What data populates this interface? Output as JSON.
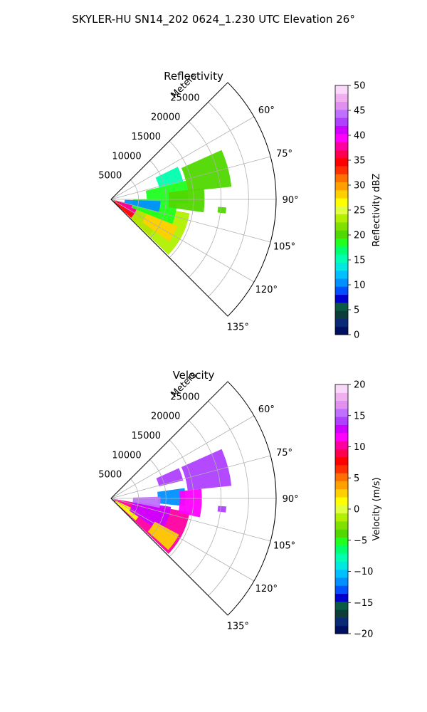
{
  "figure_title": "SKYLER-HU  SN14_202  0624_1.230 UTC Elevation 26°",
  "chart_data": [
    {
      "type": "heatmap",
      "projection": "polar-sector",
      "title": "Reflectivity",
      "radial_label": "Meters",
      "radial_ticks": [
        5000,
        10000,
        15000,
        20000,
        25000
      ],
      "radial_limit": [
        0,
        30000
      ],
      "angle_ticks": [
        60,
        75,
        90,
        105,
        120,
        135
      ],
      "angle_range_deg": [
        45,
        135
      ],
      "grid": true,
      "colorbar": {
        "label": "Reflectivity dBZ",
        "range": [
          0,
          50
        ],
        "ticks": [
          0,
          5,
          10,
          15,
          20,
          25,
          30,
          35,
          40,
          45,
          50
        ],
        "colors": [
          "#001060",
          "#0a2a78",
          "#0c3d3a",
          "#0a5a46",
          "#0000cc",
          "#0050ff",
          "#0090ff",
          "#00c0ff",
          "#00e8e0",
          "#00ffb0",
          "#00ff70",
          "#20ff20",
          "#50d800",
          "#80e000",
          "#b0f000",
          "#e0ff40",
          "#ffff00",
          "#ffd000",
          "#ffa000",
          "#ff7000",
          "#ff3000",
          "#ff0000",
          "#ff0050",
          "#ff00a0",
          "#ff00ff",
          "#d000ff",
          "#b040ff",
          "#c070ff",
          "#e090f0",
          "#f0b0f0",
          "#fad8fa"
        ]
      },
      "echo_regions": [
        {
          "r_min": 500,
          "r_max": 9500,
          "theta_min": 103,
          "theta_max": 133,
          "value": 34
        },
        {
          "r_min": 1500,
          "r_max": 7000,
          "theta_min": 106,
          "theta_max": 122,
          "value": 38
        },
        {
          "r_min": 5000,
          "r_max": 14500,
          "theta_min": 100,
          "theta_max": 134,
          "value": 24
        },
        {
          "r_min": 7000,
          "r_max": 13000,
          "theta_min": 112,
          "theta_max": 126,
          "value": 28
        },
        {
          "r_min": 4000,
          "r_max": 12000,
          "theta_min": 90,
          "theta_max": 112,
          "value": 19
        },
        {
          "r_min": 6500,
          "r_max": 14000,
          "theta_min": 76,
          "theta_max": 93,
          "value": 19
        },
        {
          "r_min": 10500,
          "r_max": 17000,
          "theta_min": 83,
          "theta_max": 98,
          "value": 20
        },
        {
          "r_min": 9000,
          "r_max": 13500,
          "theta_min": 64,
          "theta_max": 76,
          "value": 16
        },
        {
          "r_min": 14000,
          "r_max": 22000,
          "theta_min": 66,
          "theta_max": 84,
          "value": 20
        },
        {
          "r_min": 19500,
          "r_max": 21000,
          "theta_min": 94,
          "theta_max": 97,
          "value": 20
        },
        {
          "r_min": 2500,
          "r_max": 9000,
          "theta_min": 92,
          "theta_max": 105,
          "value": 11
        }
      ]
    },
    {
      "type": "heatmap",
      "projection": "polar-sector",
      "title": "Velocity",
      "radial_label": "Meters",
      "radial_ticks": [
        5000,
        10000,
        15000,
        20000,
        25000
      ],
      "radial_limit": [
        0,
        30000
      ],
      "angle_ticks": [
        60,
        75,
        90,
        105,
        120,
        135
      ],
      "angle_range_deg": [
        45,
        135
      ],
      "grid": true,
      "colorbar": {
        "label": "Velocity (m/s)",
        "range": [
          -20,
          20
        ],
        "ticks": [
          -20,
          -15,
          -10,
          -5,
          0,
          5,
          10,
          15,
          20
        ],
        "colors": [
          "#001060",
          "#0a2a78",
          "#0c3d3a",
          "#0a5a46",
          "#0000cc",
          "#0050ff",
          "#0090ff",
          "#00c0ff",
          "#00e8e0",
          "#00ffb0",
          "#00ff70",
          "#20ff20",
          "#50d800",
          "#80e000",
          "#b0f000",
          "#e0ff40",
          "#ffff00",
          "#ffd000",
          "#ffa000",
          "#ff7000",
          "#ff3000",
          "#ff0000",
          "#ff0050",
          "#ff00a0",
          "#ff00ff",
          "#d000ff",
          "#b040ff",
          "#c070ff",
          "#e090f0",
          "#f0b0f0",
          "#fad8fa"
        ]
      },
      "echo_regions": [
        {
          "r_min": 500,
          "r_max": 14500,
          "theta_min": 100,
          "theta_max": 134,
          "value": 10
        },
        {
          "r_min": 1000,
          "r_max": 6000,
          "theta_min": 115,
          "theta_max": 132,
          "value": 1
        },
        {
          "r_min": 4000,
          "r_max": 11000,
          "theta_min": 98,
          "theta_max": 124,
          "value": 13
        },
        {
          "r_min": 9000,
          "r_max": 14000,
          "theta_min": 118,
          "theta_max": 132,
          "value": 3
        },
        {
          "r_min": 8500,
          "r_max": 13500,
          "theta_min": 82,
          "theta_max": 96,
          "value": -11
        },
        {
          "r_min": 14000,
          "r_max": 22000,
          "theta_min": 66,
          "theta_max": 84,
          "value": 14
        },
        {
          "r_min": 12500,
          "r_max": 16500,
          "theta_min": 84,
          "theta_max": 102,
          "value": 11
        },
        {
          "r_min": 9000,
          "r_max": 13500,
          "theta_min": 66,
          "theta_max": 76,
          "value": 14
        },
        {
          "r_min": 19500,
          "r_max": 21000,
          "theta_min": 94,
          "theta_max": 97,
          "value": 14
        },
        {
          "r_min": 4000,
          "r_max": 9000,
          "theta_min": 88,
          "theta_max": 101,
          "value": 16
        }
      ]
    }
  ]
}
